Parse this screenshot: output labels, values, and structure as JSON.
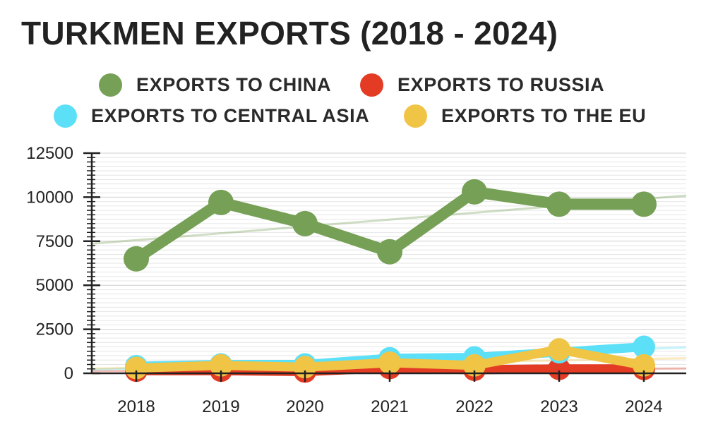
{
  "chart_data": {
    "type": "line",
    "title": "TURKMEN EXPORTS (2018 - 2024)",
    "categories": [
      "2018",
      "2019",
      "2020",
      "2021",
      "2022",
      "2023",
      "2024"
    ],
    "ylim": [
      0,
      12500
    ],
    "yticks": [
      "0",
      "2500",
      "5000",
      "7500",
      "10000",
      "12500"
    ],
    "grid": true,
    "legend_placement": "top",
    "series": [
      {
        "name": "EXPORTS TO CHINA",
        "color": "#76a055",
        "values": [
          6500,
          9700,
          8500,
          6900,
          10300,
          9600,
          9600
        ]
      },
      {
        "name": "EXPORTS TO RUSSIA",
        "color": "#e33b24",
        "values": [
          150,
          150,
          100,
          300,
          200,
          250,
          250
        ]
      },
      {
        "name": "EXPORTS TO CENTRAL ASIA",
        "color": "#5ce0f8",
        "values": [
          400,
          500,
          500,
          850,
          900,
          1200,
          1500
        ]
      },
      {
        "name": "EXPORTS TO THE EU",
        "color": "#f0c445",
        "values": [
          300,
          450,
          350,
          600,
          450,
          1350,
          450
        ]
      }
    ]
  }
}
